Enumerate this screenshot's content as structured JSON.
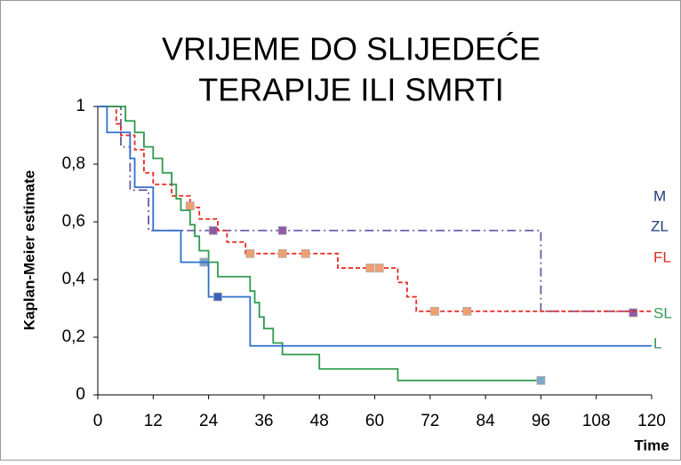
{
  "chart_data": {
    "type": "step",
    "title_lines": [
      "VRIJEME DO SLIJEDEĆE",
      "TERAPIJE ILI SMRTI"
    ],
    "y_label": "Kaplan-Meier estimate",
    "x_label": "Time",
    "xlim": [
      0,
      120
    ],
    "ylim": [
      0,
      1
    ],
    "xticks": [
      0,
      12,
      24,
      36,
      48,
      60,
      72,
      84,
      96,
      108,
      120
    ],
    "yticks": [
      {
        "value": 0,
        "label": "0"
      },
      {
        "value": 0.2,
        "label": "0,2"
      },
      {
        "value": 0.4,
        "label": "0,4"
      },
      {
        "value": 0.6,
        "label": "0,6"
      },
      {
        "value": 0.8,
        "label": "0,8"
      },
      {
        "value": 1,
        "label": "1"
      }
    ],
    "series": [
      {
        "name": "M",
        "color": "#6a5aa8",
        "label_color": "#1f3a7a",
        "dash": "10,4,2,4",
        "x": [
          0,
          5,
          7,
          11,
          96,
          116
        ],
        "values": [
          1,
          0.86,
          0.71,
          0.57,
          0.29,
          0.29
        ],
        "censor_x": [
          25,
          40,
          116
        ],
        "censor_values": [
          0.57,
          0.57,
          0.285
        ],
        "censor_color": "#8e5aa8"
      },
      {
        "name": "FL",
        "color": "#e8261f",
        "label_color": "#e8261f",
        "dash": "5,3",
        "x": [
          0,
          4,
          5,
          8,
          10,
          12,
          16,
          20,
          22,
          26,
          28,
          32,
          52,
          65,
          67,
          69,
          120
        ],
        "values": [
          1,
          0.94,
          0.9,
          0.85,
          0.77,
          0.73,
          0.69,
          0.65,
          0.61,
          0.57,
          0.53,
          0.49,
          0.44,
          0.39,
          0.34,
          0.29,
          0.29
        ],
        "censor_x": [
          20,
          33,
          40,
          45,
          59,
          61,
          73,
          80
        ],
        "censor_values": [
          0.655,
          0.49,
          0.49,
          0.49,
          0.44,
          0.44,
          0.29,
          0.29
        ],
        "censor_color": "#f0a070"
      },
      {
        "name": "SL",
        "color": "#2e9a4e",
        "label_color": "#2e9a4e",
        "dash": "",
        "x": [
          0,
          6,
          8,
          10,
          12,
          14,
          16,
          17,
          18,
          20,
          21,
          22,
          24,
          26,
          33,
          34,
          35,
          36,
          38,
          40,
          48,
          65,
          96
        ],
        "values": [
          1,
          0.95,
          0.91,
          0.86,
          0.82,
          0.77,
          0.73,
          0.68,
          0.64,
          0.59,
          0.55,
          0.5,
          0.46,
          0.41,
          0.36,
          0.32,
          0.27,
          0.23,
          0.18,
          0.14,
          0.09,
          0.05,
          0.05
        ],
        "censor_x": [
          23,
          96
        ],
        "censor_values": [
          0.46,
          0.05
        ],
        "censor_color": "#7fa8c8"
      },
      {
        "name": "L",
        "color": "#2f6fce",
        "label_color": "#2e9a4e",
        "dash": "",
        "x": [
          0,
          2,
          7,
          8,
          12,
          18,
          24,
          33,
          120
        ],
        "values": [
          1,
          0.91,
          0.82,
          0.72,
          0.57,
          0.46,
          0.34,
          0.17,
          0.17
        ],
        "censor_x": [
          26
        ],
        "censor_values": [
          0.34
        ],
        "censor_color": "#3a62b8"
      }
    ],
    "annotations": [
      {
        "text": "ZL",
        "color": "#1f3a7a"
      }
    ]
  }
}
